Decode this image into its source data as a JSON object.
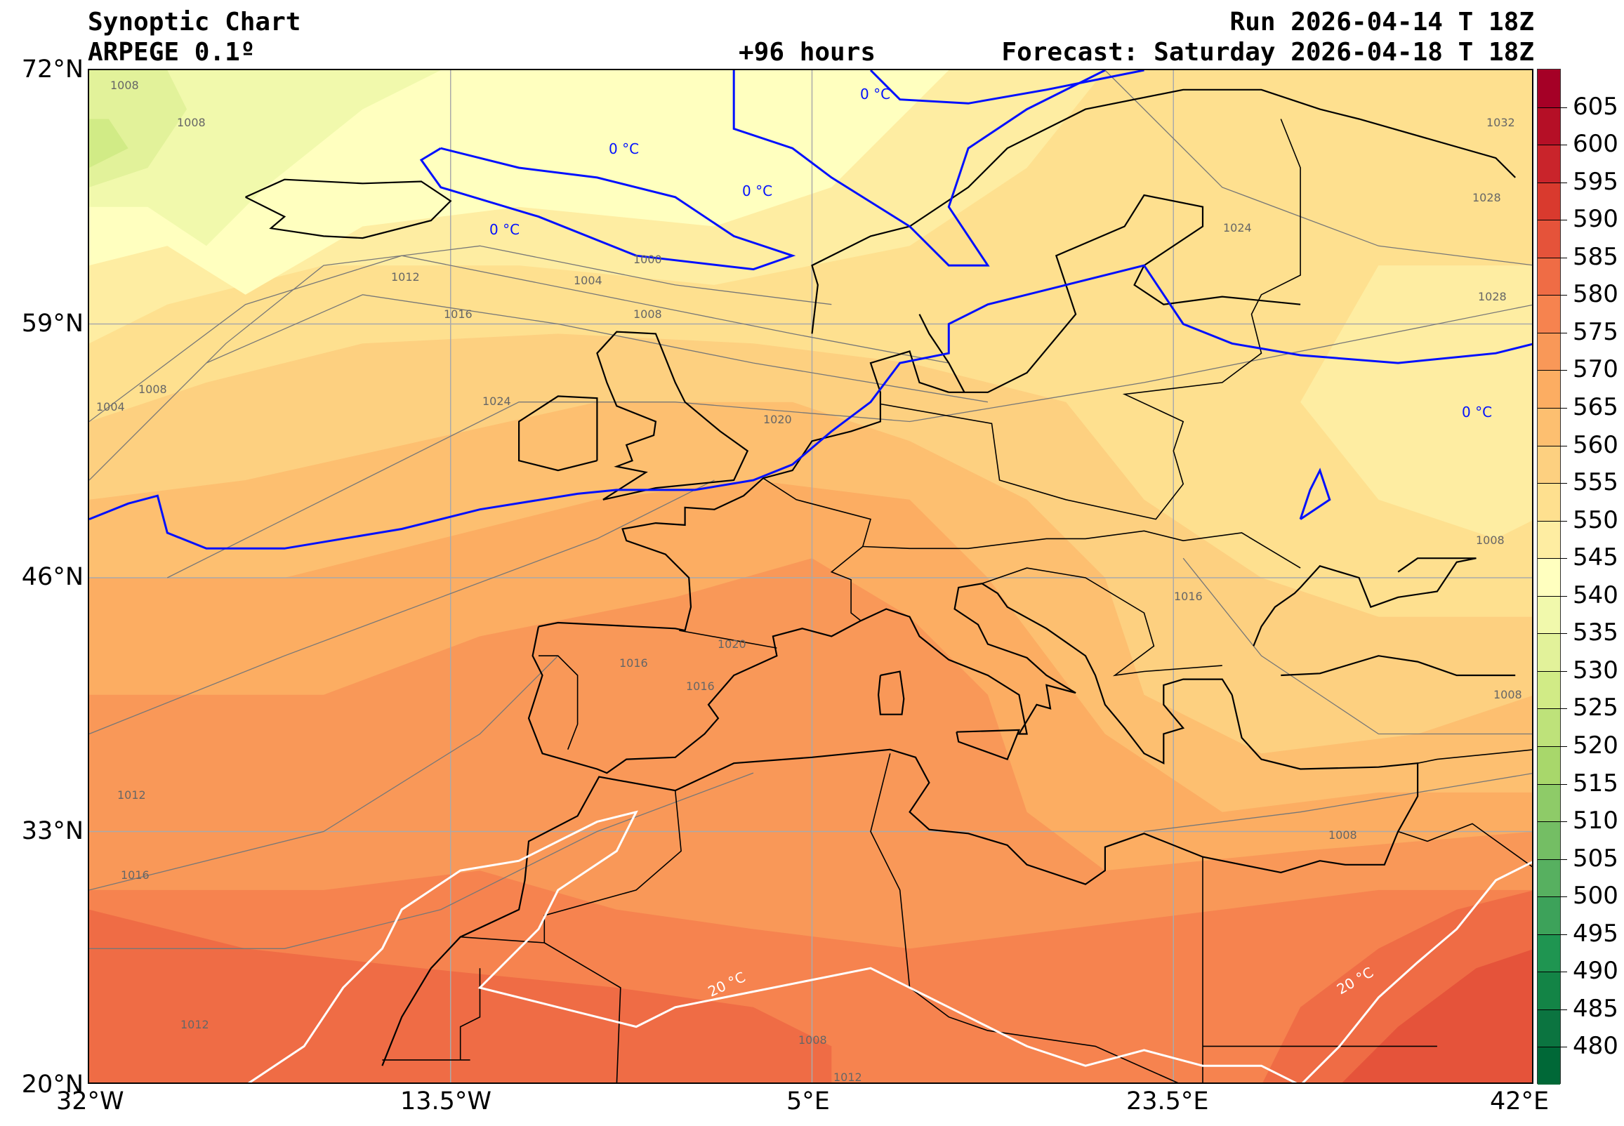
{
  "header": {
    "title": "Synoptic Chart",
    "model": "ARPEGE 0.1º",
    "lead": "+96 hours",
    "run": "Run 2026-04-14 T 18Z",
    "forecast": "Forecast: Saturday 2026-04-18 T 18Z"
  },
  "axes": {
    "lat_labels": [
      "72°N",
      "59°N",
      "46°N",
      "33°N",
      "20°N"
    ],
    "lon_labels": [
      "32°W",
      "13.5°W",
      "5°E",
      "23.5°E",
      "42°E"
    ]
  },
  "colorbar": {
    "ticks": [
      "605",
      "600",
      "595",
      "590",
      "585",
      "580",
      "575",
      "570",
      "565",
      "560",
      "555",
      "550",
      "545",
      "540",
      "535",
      "530",
      "525",
      "520",
      "515",
      "510",
      "505",
      "500",
      "495",
      "490",
      "485",
      "480"
    ],
    "colors": [
      "#a50026",
      "#b50f26",
      "#c9242b",
      "#d93a2e",
      "#e5533a",
      "#ef6c45",
      "#f6834f",
      "#f99858",
      "#fcad62",
      "#fdbf70",
      "#fdd080",
      "#fee08f",
      "#feeda2",
      "#ffffbf",
      "#f1f9ac",
      "#e2f29a",
      "#d1eb86",
      "#bee27a",
      "#a8d76b",
      "#8ecb68",
      "#74be64",
      "#57b060",
      "#3da25a",
      "#1f9551",
      "#138446",
      "#0b7440",
      "#006837"
    ]
  },
  "contour_labels": {
    "isobars": [
      "1008",
      "1008",
      "1004",
      "1008",
      "1012",
      "1016",
      "1004",
      "1000",
      "1008",
      "1024",
      "1020",
      "1012",
      "1016",
      "1032",
      "1028",
      "1024",
      "1028",
      "1008",
      "1016",
      "1016",
      "1016",
      "1020",
      "1012",
      "1008",
      "1008",
      "1008",
      "1012"
    ],
    "temp_0": [
      "0 °C",
      "0 °C",
      "0 °C",
      "0 °C",
      "0 °C"
    ],
    "temp_20": [
      "20 °C",
      "20 °C"
    ]
  }
}
